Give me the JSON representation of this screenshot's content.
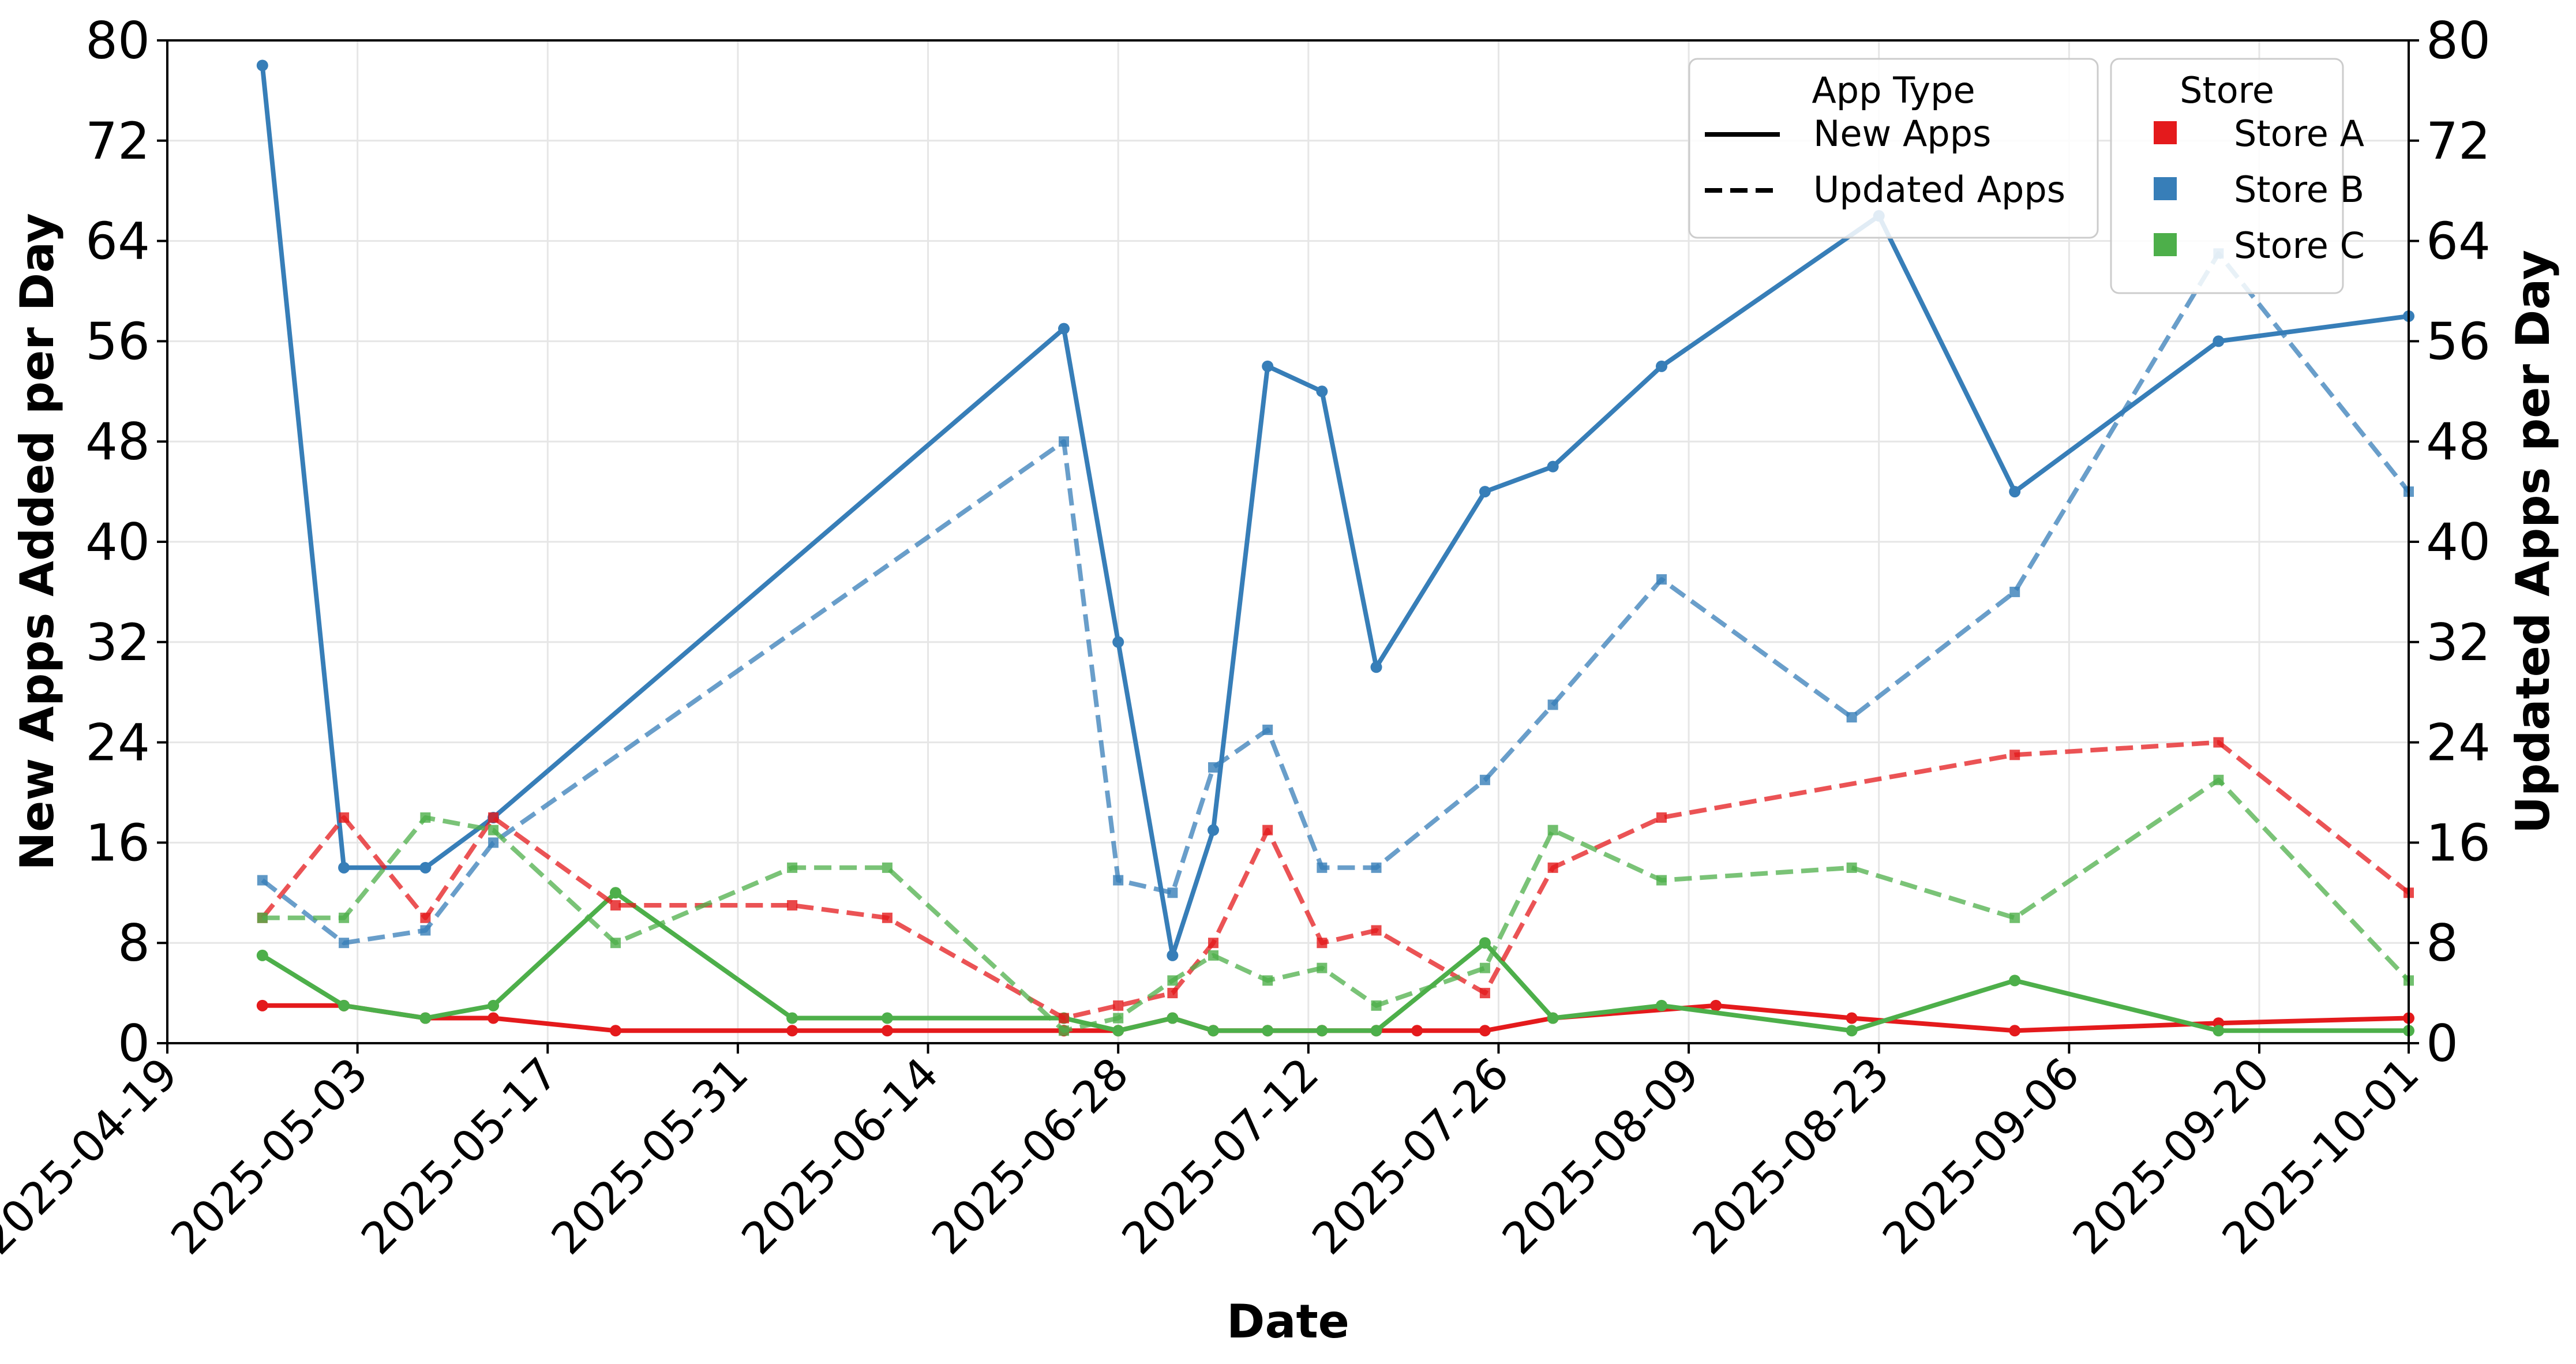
{
  "chart_data": {
    "type": "line",
    "xlabel": "Date",
    "ylabel_left": "New Apps Added per Day",
    "ylabel_right": "Updated Apps per Day",
    "xlim": [
      "2025-04-19",
      "2025-10-01"
    ],
    "xticks": [
      "2025-04-19",
      "2025-05-03",
      "2025-05-17",
      "2025-05-31",
      "2025-06-14",
      "2025-06-28",
      "2025-07-12",
      "2025-07-26",
      "2025-08-09",
      "2025-08-23",
      "2025-09-06",
      "2025-09-20",
      "2025-10-01"
    ],
    "ylim_left": [
      0,
      80
    ],
    "ylim_right": [
      0,
      80
    ],
    "yticks": [
      0,
      8,
      16,
      24,
      32,
      40,
      48,
      56,
      64,
      72,
      80
    ],
    "grid": true,
    "legends": [
      {
        "title": "App Type",
        "placement": "top-right",
        "entries": [
          {
            "label": "New Apps",
            "style": "solid"
          },
          {
            "label": "Updated Apps",
            "style": "dashed"
          }
        ]
      },
      {
        "title": "Store",
        "placement": "top-right",
        "entries": [
          {
            "label": "Store A",
            "color": "#e41a1c"
          },
          {
            "label": "Store B",
            "color": "#377eb8"
          },
          {
            "label": "Store C",
            "color": "#4daf4a"
          }
        ]
      }
    ],
    "series": [
      {
        "name": "Store A",
        "kind": "New Apps",
        "axis": "left",
        "color": "#e41a1c",
        "style": "solid",
        "x": [
          "2025-04-26",
          "2025-05-02",
          "2025-05-08",
          "2025-05-13",
          "2025-05-22",
          "2025-06-04",
          "2025-06-11",
          "2025-06-24",
          "2025-06-28",
          "2025-07-02",
          "2025-07-05",
          "2025-07-09",
          "2025-07-13",
          "2025-07-17",
          "2025-07-20",
          "2025-07-25",
          "2025-07-30",
          "2025-08-11",
          "2025-08-21",
          "2025-09-02",
          "2025-09-17",
          "2025-10-01"
        ],
        "values": [
          3,
          3,
          2,
          2,
          1,
          1,
          1,
          1,
          1,
          2,
          1,
          1,
          1,
          1,
          1,
          1,
          2,
          3,
          2,
          1,
          1.6,
          2
        ]
      },
      {
        "name": "Store B",
        "kind": "New Apps",
        "axis": "left",
        "color": "#377eb8",
        "style": "solid",
        "x": [
          "2025-04-26",
          "2025-05-02",
          "2025-05-08",
          "2025-05-13",
          "2025-06-24",
          "2025-06-28",
          "2025-07-02",
          "2025-07-05",
          "2025-07-09",
          "2025-07-13",
          "2025-07-17",
          "2025-07-25",
          "2025-07-30",
          "2025-08-07",
          "2025-08-23",
          "2025-09-02",
          "2025-09-17",
          "2025-10-01"
        ],
        "values": [
          78,
          14,
          14,
          18,
          57,
          32,
          7,
          17,
          54,
          52,
          30,
          44,
          46,
          54,
          66,
          44,
          56,
          58
        ]
      },
      {
        "name": "Store C",
        "kind": "New Apps",
        "axis": "left",
        "color": "#4daf4a",
        "style": "solid",
        "x": [
          "2025-04-26",
          "2025-05-02",
          "2025-05-08",
          "2025-05-13",
          "2025-05-22",
          "2025-06-04",
          "2025-06-11",
          "2025-06-24",
          "2025-06-28",
          "2025-07-02",
          "2025-07-05",
          "2025-07-09",
          "2025-07-13",
          "2025-07-17",
          "2025-07-25",
          "2025-07-30",
          "2025-08-07",
          "2025-08-21",
          "2025-09-02",
          "2025-09-17",
          "2025-10-01"
        ],
        "values": [
          7,
          3,
          2,
          3,
          12,
          2,
          2,
          2,
          1,
          2,
          1,
          1,
          1,
          1,
          8,
          2,
          3,
          1,
          5,
          1,
          1
        ]
      },
      {
        "name": "Store A",
        "kind": "Updated Apps",
        "axis": "right",
        "color": "#e41a1c",
        "style": "dashed",
        "x": [
          "2025-04-26",
          "2025-05-02",
          "2025-05-08",
          "2025-05-13",
          "2025-05-22",
          "2025-06-04",
          "2025-06-11",
          "2025-06-24",
          "2025-06-28",
          "2025-07-02",
          "2025-07-05",
          "2025-07-09",
          "2025-07-13",
          "2025-07-17",
          "2025-07-25",
          "2025-07-30",
          "2025-08-07",
          "2025-09-02",
          "2025-09-17",
          "2025-10-01"
        ],
        "values": [
          10,
          18,
          10,
          18,
          11,
          11,
          10,
          2,
          3,
          4,
          8,
          17,
          8,
          9,
          4,
          14,
          18,
          23,
          24,
          12
        ]
      },
      {
        "name": "Store B",
        "kind": "Updated Apps",
        "axis": "right",
        "color": "#377eb8",
        "style": "dashed",
        "x": [
          "2025-04-26",
          "2025-05-02",
          "2025-05-08",
          "2025-05-13",
          "2025-06-24",
          "2025-06-28",
          "2025-07-02",
          "2025-07-05",
          "2025-07-09",
          "2025-07-13",
          "2025-07-17",
          "2025-07-25",
          "2025-07-30",
          "2025-08-07",
          "2025-08-21",
          "2025-09-02",
          "2025-09-17",
          "2025-10-01"
        ],
        "values": [
          13,
          8,
          9,
          16,
          48,
          13,
          12,
          22,
          25,
          14,
          14,
          21,
          27,
          37,
          26,
          36,
          63,
          44
        ]
      },
      {
        "name": "Store C",
        "kind": "Updated Apps",
        "axis": "right",
        "color": "#4daf4a",
        "style": "dashed",
        "x": [
          "2025-04-26",
          "2025-05-02",
          "2025-05-08",
          "2025-05-13",
          "2025-05-22",
          "2025-06-04",
          "2025-06-11",
          "2025-06-24",
          "2025-06-28",
          "2025-07-02",
          "2025-07-05",
          "2025-07-09",
          "2025-07-13",
          "2025-07-17",
          "2025-07-25",
          "2025-07-30",
          "2025-08-07",
          "2025-08-21",
          "2025-09-02",
          "2025-09-17",
          "2025-10-01"
        ],
        "values": [
          10,
          10,
          18,
          17,
          8,
          14,
          14,
          1,
          2,
          5,
          7,
          5,
          6,
          3,
          6,
          17,
          13,
          14,
          10,
          21,
          5
        ]
      }
    ]
  }
}
